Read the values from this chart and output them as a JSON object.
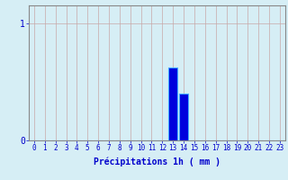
{
  "hours": [
    0,
    1,
    2,
    3,
    4,
    5,
    6,
    7,
    8,
    9,
    10,
    11,
    12,
    13,
    14,
    15,
    16,
    17,
    18,
    19,
    20,
    21,
    22,
    23
  ],
  "values": [
    0,
    0,
    0,
    0,
    0,
    0,
    0,
    0,
    0,
    0,
    0,
    0,
    0,
    0.62,
    0.4,
    0,
    0,
    0,
    0,
    0,
    0,
    0,
    0,
    0
  ],
  "bar_color": "#0000dd",
  "bar_edge_color": "#44aaff",
  "background_color": "#d6eef5",
  "grid_color": "#c8a8a8",
  "xlabel": "Précipitations 1h ( mm )",
  "xlabel_color": "#0000cc",
  "xlabel_fontsize": 7,
  "tick_color": "#0000cc",
  "tick_fontsize": 5.5,
  "ytick_labels": [
    "0",
    "1"
  ],
  "ytick_values": [
    0,
    1
  ],
  "ylim": [
    0,
    1.15
  ],
  "xlim": [
    -0.5,
    23.5
  ],
  "axis_color": "#888888"
}
